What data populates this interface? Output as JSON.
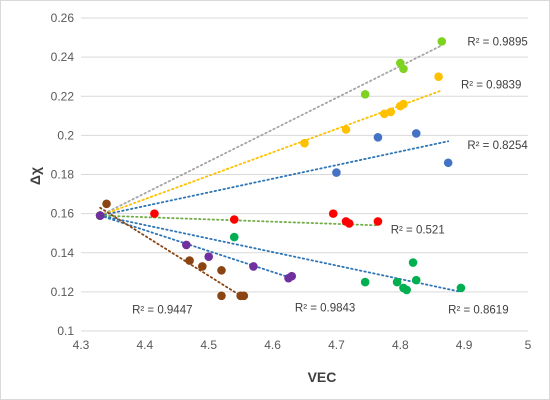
{
  "chart_data": {
    "type": "scatter",
    "title": "",
    "xlabel": "VEC",
    "ylabel": "Δχ",
    "xlim": [
      4.3,
      5
    ],
    "ylim": [
      0.1,
      0.26
    ],
    "x_ticks": [
      "4.3",
      "4.4",
      "4.5",
      "4.6",
      "4.7",
      "4.8",
      "4.9",
      "5"
    ],
    "y_ticks": [
      "0.1",
      "0.12",
      "0.14",
      "0.16",
      "0.18",
      "0.2",
      "0.22",
      "0.24",
      "0.26"
    ],
    "grid": "horizontal",
    "legend": "none",
    "series": [
      {
        "color": "#7ED321",
        "trend_color": "#a6a6a6",
        "r2_label": "R² = 0.9895",
        "points": [
          [
            4.33,
            0.159
          ],
          [
            4.745,
            0.221
          ],
          [
            4.8,
            0.237
          ],
          [
            4.805,
            0.234
          ],
          [
            4.865,
            0.248
          ]
        ],
        "trend": [
          [
            4.33,
            0.159
          ],
          [
            4.865,
            0.246
          ]
        ]
      },
      {
        "color": "#FFC000",
        "trend_color": "#FFC000",
        "r2_label": "R² = 0.9839",
        "points": [
          [
            4.33,
            0.159
          ],
          [
            4.65,
            0.196
          ],
          [
            4.715,
            0.203
          ],
          [
            4.775,
            0.211
          ],
          [
            4.785,
            0.212
          ],
          [
            4.8,
            0.215
          ],
          [
            4.805,
            0.216
          ],
          [
            4.86,
            0.23
          ]
        ],
        "trend": [
          [
            4.33,
            0.159
          ],
          [
            4.865,
            0.223
          ]
        ]
      },
      {
        "color": "#4472C4",
        "trend_color": "#2E75B6",
        "r2_label": "R² = 0.8254",
        "points": [
          [
            4.33,
            0.159
          ],
          [
            4.7,
            0.181
          ],
          [
            4.765,
            0.199
          ],
          [
            4.825,
            0.201
          ],
          [
            4.875,
            0.186
          ]
        ],
        "trend": [
          [
            4.33,
            0.159
          ],
          [
            4.875,
            0.197
          ]
        ]
      },
      {
        "color": "#FF0000",
        "trend_color": "#70AD47",
        "r2_label": "R² = 0.521",
        "points": [
          [
            4.33,
            0.159
          ],
          [
            4.415,
            0.16
          ],
          [
            4.54,
            0.157
          ],
          [
            4.695,
            0.16
          ],
          [
            4.715,
            0.156
          ],
          [
            4.72,
            0.155
          ],
          [
            4.765,
            0.156
          ]
        ],
        "trend": [
          [
            4.33,
            0.159
          ],
          [
            4.765,
            0.154
          ]
        ]
      },
      {
        "color": "#00B050",
        "trend_color": "#2E75B6",
        "r2_label": "R² = 0.8619",
        "points": [
          [
            4.33,
            0.159
          ],
          [
            4.54,
            0.148
          ],
          [
            4.745,
            0.125
          ],
          [
            4.795,
            0.125
          ],
          [
            4.805,
            0.122
          ],
          [
            4.81,
            0.121
          ],
          [
            4.82,
            0.135
          ],
          [
            4.825,
            0.126
          ],
          [
            4.895,
            0.122
          ]
        ],
        "trend": [
          [
            4.33,
            0.159
          ],
          [
            4.895,
            0.12
          ]
        ]
      },
      {
        "color": "#7030A0",
        "trend_color": "#2E75B6",
        "r2_label": "R² = 0.9843",
        "points": [
          [
            4.33,
            0.159
          ],
          [
            4.465,
            0.144
          ],
          [
            4.5,
            0.138
          ],
          [
            4.57,
            0.133
          ],
          [
            4.625,
            0.127
          ],
          [
            4.63,
            0.128
          ]
        ],
        "trend": [
          [
            4.33,
            0.159
          ],
          [
            4.63,
            0.127
          ]
        ]
      },
      {
        "color": "#8B4513",
        "trend_color": "#8B4513",
        "r2_label": "R² = 0.9447",
        "points": [
          [
            4.34,
            0.165
          ],
          [
            4.47,
            0.136
          ],
          [
            4.49,
            0.133
          ],
          [
            4.52,
            0.131
          ],
          [
            4.52,
            0.118
          ],
          [
            4.55,
            0.118
          ],
          [
            4.555,
            0.118
          ]
        ],
        "trend": [
          [
            4.33,
            0.163
          ],
          [
            4.555,
            0.117
          ]
        ]
      }
    ],
    "r2_positions_data": [
      [
        4.905,
        0.248
      ],
      [
        4.895,
        0.226
      ],
      [
        4.905,
        0.195
      ],
      [
        4.785,
        0.152
      ],
      [
        4.875,
        0.111
      ],
      [
        4.635,
        0.112
      ],
      [
        4.38,
        0.111
      ]
    ]
  }
}
